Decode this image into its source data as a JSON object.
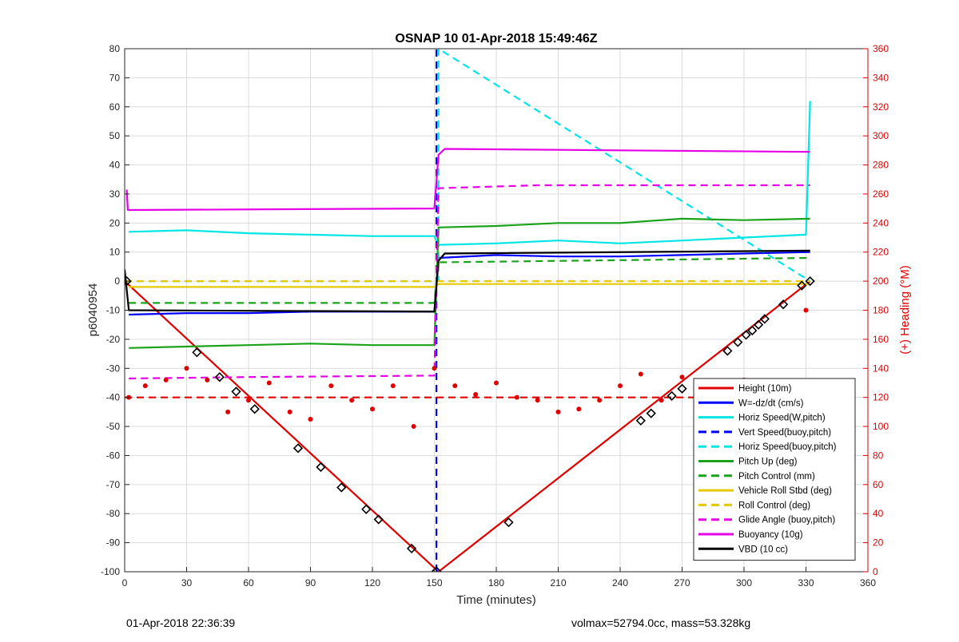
{
  "chart_data": {
    "type": "line",
    "title": "OSNAP 10 01-Apr-2018 15:49:46Z",
    "xlabel": "Time (minutes)",
    "ylabel": "p6040954",
    "y2label": "(+) Heading (°M)",
    "xlim": [
      0,
      360
    ],
    "ylim": [
      -100,
      80
    ],
    "y2lim": [
      0,
      360
    ],
    "xticks": [
      "0",
      "30",
      "60",
      "90",
      "120",
      "150",
      "180",
      "210",
      "240",
      "270",
      "300",
      "330",
      "360"
    ],
    "yticks": [
      "-100",
      "-90",
      "-80",
      "-70",
      "-60",
      "-50",
      "-40",
      "-30",
      "-20",
      "-10",
      "0",
      "10",
      "20",
      "30",
      "40",
      "50",
      "60",
      "70",
      "80"
    ],
    "y2ticks": [
      "0",
      "20",
      "40",
      "60",
      "80",
      "100",
      "120",
      "140",
      "160",
      "180",
      "200",
      "220",
      "240",
      "260",
      "280",
      "300",
      "320",
      "340",
      "360"
    ],
    "grid": true,
    "legend_position": "bottom-right",
    "colors": {
      "red": "#e00000",
      "blue": "#0000ff",
      "darkblue": "#1a1acc",
      "cyan": "#00e5e5",
      "green": "#1aa31a",
      "yellow": "#e6c800",
      "magenta": "#e600e6",
      "black": "#000000",
      "right_axis": "#e00000"
    },
    "series": [
      {
        "name": "Height (10m)",
        "color": "#e00000",
        "style": "solid",
        "x": [
          0,
          152,
          332
        ],
        "y": [
          0,
          -100,
          0
        ]
      },
      {
        "name": "W=-dz/dt (cm/s)",
        "color": "#0000ff",
        "style": "solid",
        "x": [
          2,
          30,
          60,
          90,
          120,
          150,
          152,
          180,
          210,
          240,
          270,
          300,
          332
        ],
        "y": [
          -11.5,
          -11,
          -11,
          -10.5,
          -10.5,
          -10.5,
          8,
          9,
          8.5,
          8.5,
          9,
          9.5,
          10
        ]
      },
      {
        "name": "Horiz Speed(W,pitch)",
        "color": "#00e5e5",
        "style": "solid",
        "x": [
          2,
          30,
          60,
          90,
          120,
          150,
          152,
          180,
          210,
          240,
          270,
          300,
          330,
          332
        ],
        "y": [
          17,
          17.5,
          16.5,
          16,
          15.5,
          15.5,
          12.5,
          13,
          14,
          13,
          14,
          15,
          16,
          62
        ]
      },
      {
        "name": "Vert Speed(buoy,pitch)",
        "color": "#0000ff",
        "style": "dashed",
        "x": [
          151,
          151
        ],
        "y": [
          -100,
          80
        ]
      },
      {
        "name": "Horiz Speed(buoy,pitch)",
        "color": "#00e5e5",
        "style": "dashed",
        "x": [
          0,
          152,
          152,
          332
        ],
        "y": [
          0,
          0,
          80,
          0
        ]
      },
      {
        "name": "Pitch Up (deg)",
        "color": "#1aa31a",
        "style": "solid",
        "x": [
          2,
          30,
          60,
          90,
          120,
          150,
          152,
          180,
          210,
          240,
          270,
          300,
          332
        ],
        "y": [
          -23,
          -22.5,
          -22,
          -21.5,
          -22,
          -22,
          18.5,
          19,
          20,
          20,
          21.5,
          21,
          21.5
        ]
      },
      {
        "name": "Pitch Control (mm)",
        "color": "#1aa31a",
        "style": "dashed",
        "x": [
          2,
          150,
          152,
          332
        ],
        "y": [
          -7.5,
          -7.5,
          6.5,
          8
        ]
      },
      {
        "name": "Vehicle Roll Stbd (deg)",
        "color": "#e6c800",
        "style": "solid",
        "x": [
          2,
          150,
          152,
          332
        ],
        "y": [
          -2,
          -2,
          -1,
          -1
        ]
      },
      {
        "name": "Roll Control (deg)",
        "color": "#e6c800",
        "style": "dashed",
        "x": [
          0,
          150,
          152,
          332
        ],
        "y": [
          0,
          0,
          0,
          0
        ]
      },
      {
        "name": "Glide Angle (buoy,pitch)",
        "color": "#e600e6",
        "style": "dashed",
        "x": [
          2,
          60,
          150,
          152,
          200,
          260,
          332
        ],
        "y": [
          -33.5,
          -33,
          -32.5,
          32,
          33,
          33,
          33
        ]
      },
      {
        "name": "Buoyancy (10g)",
        "color": "#e600e6",
        "style": "solid",
        "x": [
          1,
          1.5,
          2,
          150,
          152,
          155,
          332
        ],
        "y": [
          31.5,
          24.5,
          24.5,
          25,
          43.5,
          45.5,
          44.5
        ]
      },
      {
        "name": "VBD (10 cc)",
        "color": "#000000",
        "style": "solid",
        "x": [
          0,
          2,
          150,
          152,
          155,
          332
        ],
        "y": [
          4,
          -10,
          -10.5,
          7,
          9.5,
          10.5
        ]
      }
    ],
    "heading": {
      "name": "Heading (°M)",
      "axis": "right",
      "color": "#e00000",
      "marker": "dot",
      "x": [
        2,
        10,
        20,
        30,
        40,
        50,
        60,
        70,
        80,
        90,
        100,
        110,
        120,
        130,
        140,
        150,
        160,
        170,
        180,
        190,
        200,
        210,
        220,
        230,
        240,
        250,
        260,
        270,
        280,
        290,
        300,
        310,
        320,
        330
      ],
      "y": [
        120,
        128,
        132,
        140,
        132,
        110,
        118,
        130,
        110,
        105,
        128,
        118,
        112,
        128,
        100,
        140,
        128,
        122,
        130,
        120,
        118,
        110,
        112,
        118,
        128,
        136,
        118,
        134,
        130,
        128,
        132,
        120,
        130,
        180
      ],
      "target": 120
    },
    "markers": {
      "x": [
        1,
        35,
        46,
        54,
        63,
        84,
        95,
        105,
        117,
        123,
        139,
        151,
        186,
        250,
        255,
        265,
        270,
        292,
        297,
        301,
        304,
        307,
        310,
        319,
        328,
        332
      ],
      "y": [
        0,
        -24.5,
        -33,
        -38,
        -44,
        -57.5,
        -64,
        -71,
        -78.5,
        -82,
        -92,
        -99.8,
        -83,
        -48,
        -45.5,
        -39.5,
        -37,
        -24,
        -21,
        -18.5,
        -17,
        -15,
        -13,
        -8,
        -1.5,
        0
      ]
    }
  },
  "footer": {
    "left": "01-Apr-2018 22:36:39",
    "right": "volmax=52794.0cc, mass=53.328kg"
  }
}
